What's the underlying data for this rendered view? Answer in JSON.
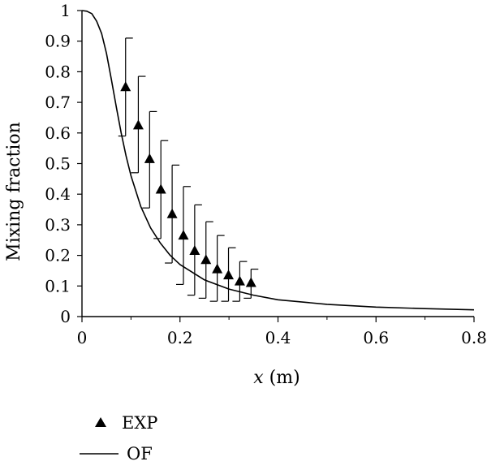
{
  "chart_data": {
    "type": "scatter",
    "xlabel_var": "x",
    "xlabel_unit": " (m)",
    "ylabel": "Mixing fraction",
    "xlim": [
      0,
      0.8
    ],
    "ylim": [
      0,
      1
    ],
    "x_ticks": [
      "0",
      "0.2",
      "0.4",
      "0.6",
      "0.8"
    ],
    "y_ticks": [
      "0",
      "0.1",
      "0.2",
      "0.3",
      "0.4",
      "0.5",
      "0.6",
      "0.7",
      "0.8",
      "0.9",
      "1"
    ],
    "grid": false,
    "legend_position": "bottom-left",
    "series": [
      {
        "name": "EXP",
        "kind": "scatter-with-error-bars",
        "marker": "triangle",
        "color": "#000000",
        "points": [
          {
            "x": 0.089,
            "y": 0.75,
            "y_low": 0.59,
            "y_high": 0.91
          },
          {
            "x": 0.115,
            "y": 0.625,
            "y_low": 0.47,
            "y_high": 0.785
          },
          {
            "x": 0.138,
            "y": 0.515,
            "y_low": 0.355,
            "y_high": 0.67
          },
          {
            "x": 0.161,
            "y": 0.415,
            "y_low": 0.255,
            "y_high": 0.575
          },
          {
            "x": 0.184,
            "y": 0.335,
            "y_low": 0.175,
            "y_high": 0.495
          },
          {
            "x": 0.207,
            "y": 0.265,
            "y_low": 0.105,
            "y_high": 0.425
          },
          {
            "x": 0.23,
            "y": 0.215,
            "y_low": 0.07,
            "y_high": 0.365
          },
          {
            "x": 0.253,
            "y": 0.185,
            "y_low": 0.06,
            "y_high": 0.31
          },
          {
            "x": 0.276,
            "y": 0.155,
            "y_low": 0.05,
            "y_high": 0.265
          },
          {
            "x": 0.299,
            "y": 0.135,
            "y_low": 0.05,
            "y_high": 0.225
          },
          {
            "x": 0.322,
            "y": 0.115,
            "y_low": 0.05,
            "y_high": 0.18
          },
          {
            "x": 0.345,
            "y": 0.11,
            "y_low": 0.06,
            "y_high": 0.155
          }
        ]
      },
      {
        "name": "OF",
        "kind": "line",
        "color": "#000000",
        "x": [
          0,
          0.01,
          0.02,
          0.03,
          0.04,
          0.05,
          0.06,
          0.07,
          0.08,
          0.09,
          0.1,
          0.12,
          0.14,
          0.16,
          0.18,
          0.2,
          0.25,
          0.3,
          0.35,
          0.4,
          0.5,
          0.6,
          0.7,
          0.8
        ],
        "y": [
          1.0,
          0.998,
          0.99,
          0.965,
          0.925,
          0.86,
          0.775,
          0.685,
          0.6,
          0.525,
          0.46,
          0.36,
          0.29,
          0.24,
          0.2,
          0.17,
          0.12,
          0.09,
          0.07,
          0.055,
          0.04,
          0.031,
          0.026,
          0.022
        ]
      }
    ]
  }
}
